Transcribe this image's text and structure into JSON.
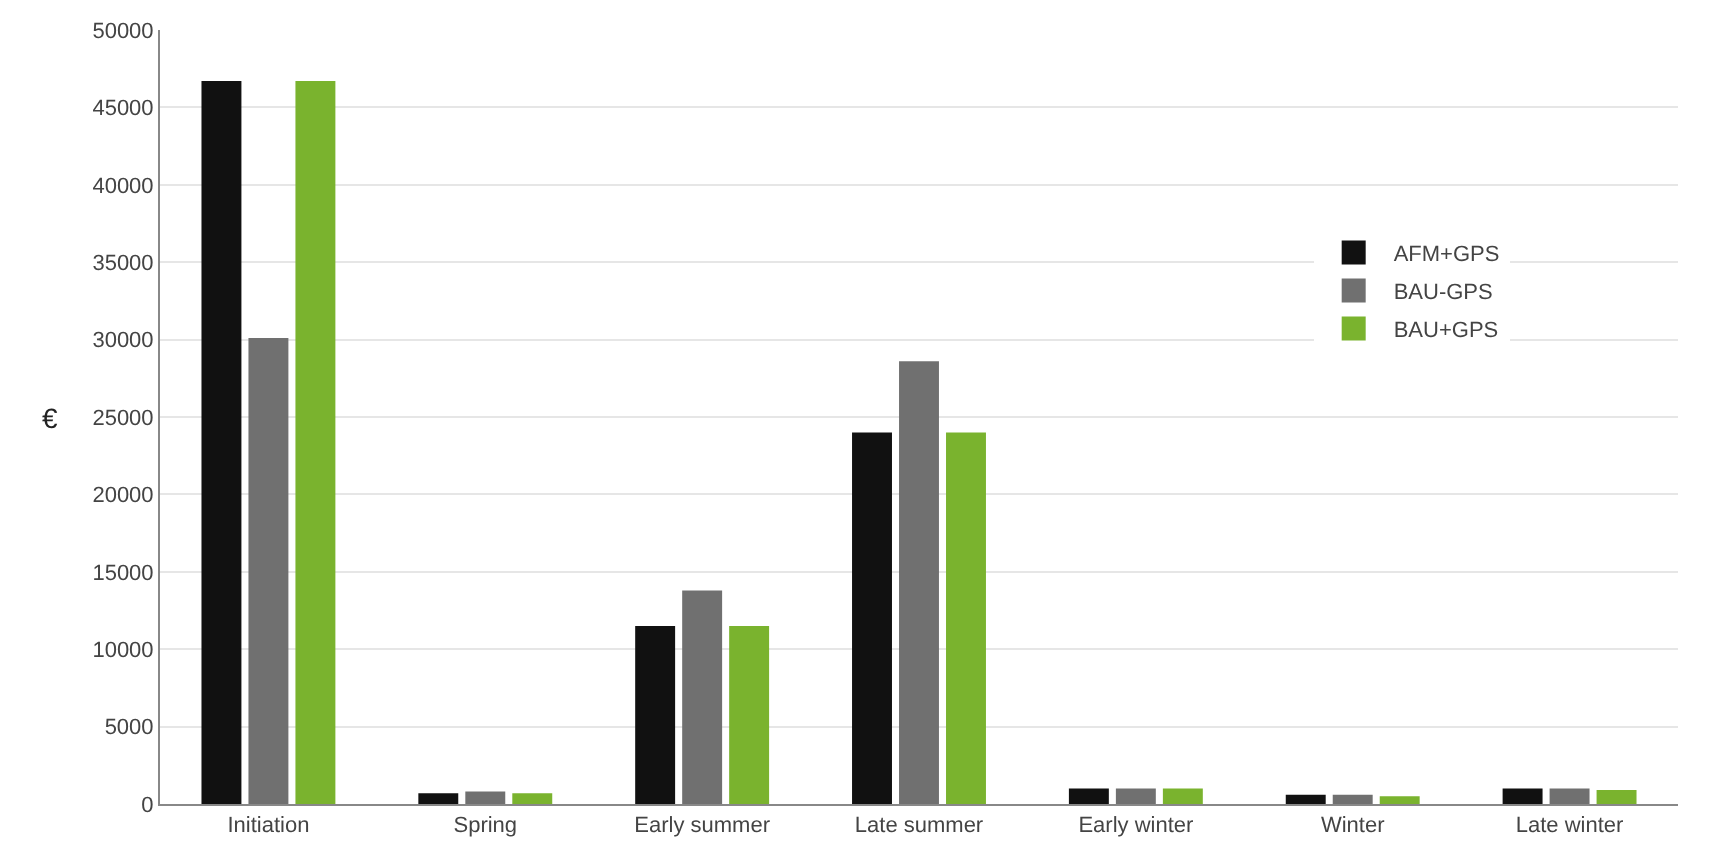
{
  "chart_data": {
    "type": "bar",
    "ylabel": "€",
    "categories": [
      "Initiation",
      "Spring",
      "Early summer",
      "Late summer",
      "Early winter",
      "Winter",
      "Late winter"
    ],
    "series": [
      {
        "name": "AFM+GPS",
        "color": "#111111",
        "values": [
          46700,
          700,
          11500,
          24000,
          1000,
          600,
          1000
        ]
      },
      {
        "name": "BAU-GPS",
        "color": "#707070",
        "values": [
          30100,
          800,
          13800,
          28600,
          1000,
          600,
          1000
        ]
      },
      {
        "name": "BAU+GPS",
        "color": "#7ab32e",
        "values": [
          46700,
          700,
          11500,
          24000,
          1000,
          500,
          900
        ]
      }
    ],
    "ylim": [
      0,
      50000
    ],
    "yticks": [
      0,
      5000,
      10000,
      15000,
      20000,
      25000,
      30000,
      35000,
      40000,
      45000,
      50000
    ],
    "grid": "y",
    "legend": "right"
  }
}
